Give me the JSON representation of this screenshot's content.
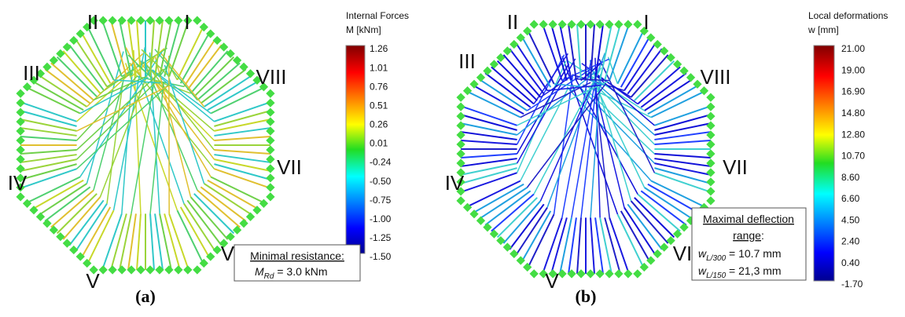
{
  "panels": [
    {
      "numerals": [
        "II",
        "I",
        "III",
        "VIII",
        "IV",
        "VII",
        "V",
        "VI"
      ],
      "colorbar": {
        "title": [
          "Internal Forces",
          "M [kNm]"
        ],
        "ticks": [
          "1.26",
          "1.01",
          "0.76",
          "0.51",
          "0.26",
          "0.01",
          "-0.24",
          "-0.50",
          "-0.75",
          "-1.00",
          "-1.25",
          "-1.50"
        ]
      },
      "note": {
        "heading": "Minimal resistance:",
        "symbol": "M",
        "subscript": "Rd",
        "text": " = 3.0 kNm"
      },
      "caption": "(a)"
    },
    {
      "numerals": [
        "II",
        "I",
        "III",
        "VIII",
        "IV",
        "VII",
        "V",
        "VI"
      ],
      "colorbar": {
        "title": [
          "Local deformations",
          "w [mm]"
        ],
        "ticks": [
          "21.00",
          "19.00",
          "16.90",
          "14.80",
          "12.80",
          "10.70",
          "8.60",
          "6.60",
          "4.50",
          "2.40",
          "0.40",
          "-1.70"
        ]
      },
      "note": {
        "heading": "Maximal deflection",
        "heading2": "range",
        "colon": ":",
        "lines": [
          {
            "symbol": "w",
            "subscript": "L/300",
            "text": " = 10.7 mm"
          },
          {
            "symbol": "w",
            "subscript": "L/150",
            "text": " = 21,3 mm"
          }
        ]
      },
      "caption": "(b)"
    }
  ]
}
